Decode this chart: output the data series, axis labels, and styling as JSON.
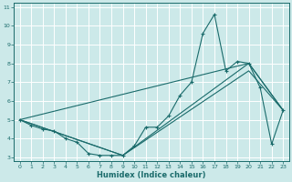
{
  "xlabel": "Humidex (Indice chaleur)",
  "background_color": "#cce9e9",
  "grid_color": "#b0d8d8",
  "line_color": "#1a6b6b",
  "xlim": [
    -0.5,
    23.5
  ],
  "ylim": [
    2.8,
    11.2
  ],
  "xticks": [
    0,
    1,
    2,
    3,
    4,
    5,
    6,
    7,
    8,
    9,
    10,
    11,
    12,
    13,
    14,
    15,
    16,
    17,
    18,
    19,
    20,
    21,
    22,
    23
  ],
  "yticks": [
    3,
    4,
    5,
    6,
    7,
    8,
    9,
    10,
    11
  ],
  "line_detailed": {
    "x": [
      0,
      1,
      2,
      3,
      4,
      5,
      6,
      7,
      8,
      9,
      10,
      11,
      12,
      13,
      14,
      15,
      16,
      17,
      18,
      19,
      20,
      21,
      22,
      23
    ],
    "y": [
      5.0,
      4.7,
      4.5,
      4.4,
      4.0,
      3.8,
      3.2,
      3.1,
      3.1,
      3.1,
      3.6,
      4.6,
      4.6,
      5.2,
      6.3,
      7.0,
      9.6,
      10.6,
      7.6,
      8.1,
      8.0,
      6.7,
      3.7,
      5.5
    ]
  },
  "line_upper": {
    "x": [
      0,
      9,
      20,
      23
    ],
    "y": [
      5.0,
      3.1,
      8.0,
      5.5
    ]
  },
  "line_lower": {
    "x": [
      0,
      9,
      20,
      23
    ],
    "y": [
      5.0,
      3.1,
      7.6,
      5.5
    ]
  },
  "line_diag": {
    "x": [
      0,
      20,
      23
    ],
    "y": [
      5.0,
      8.0,
      5.5
    ]
  }
}
